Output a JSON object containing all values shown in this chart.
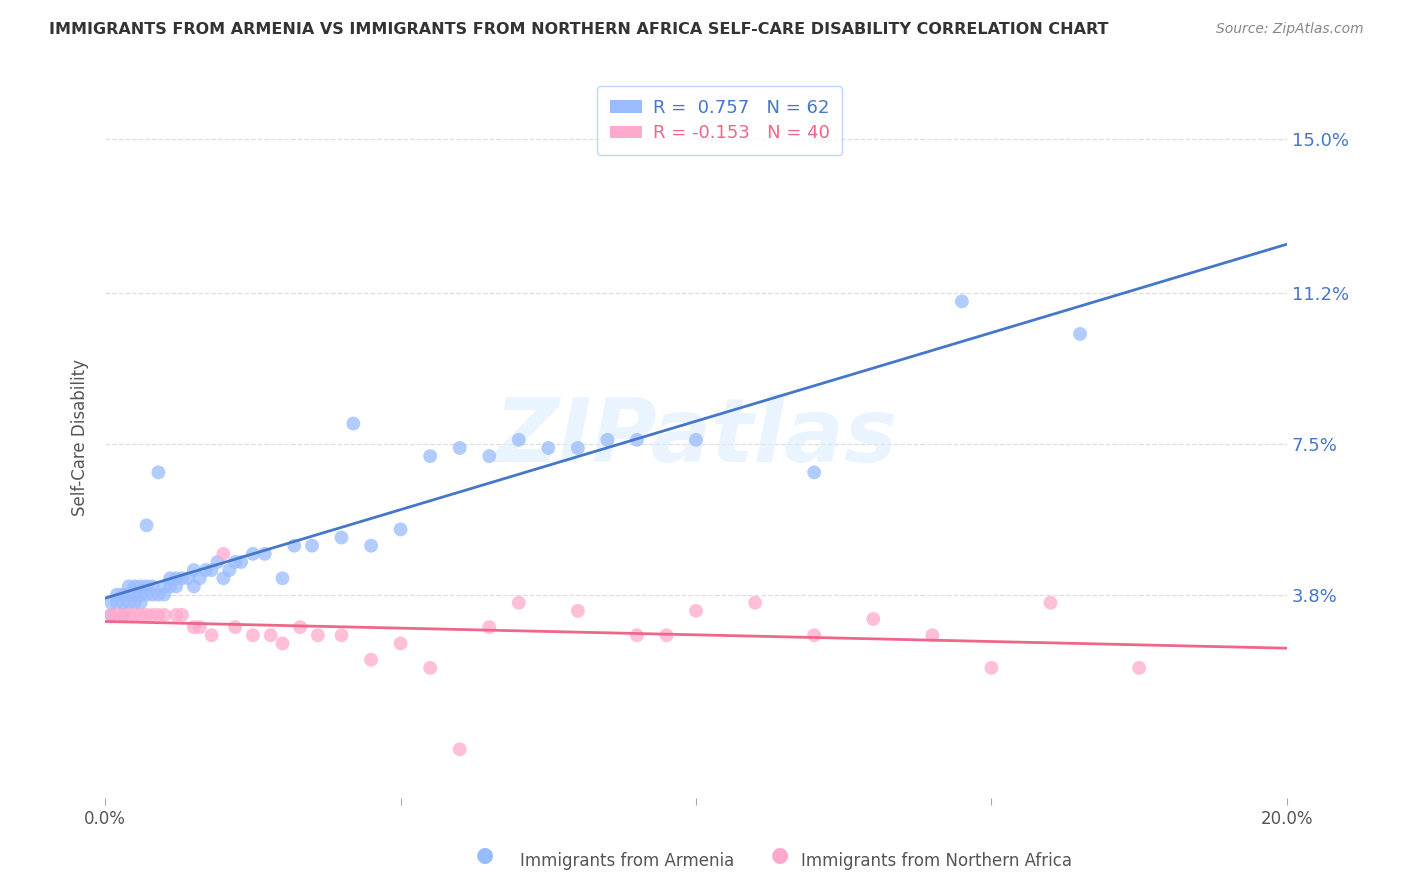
{
  "title": "IMMIGRANTS FROM ARMENIA VS IMMIGRANTS FROM NORTHERN AFRICA SELF-CARE DISABILITY CORRELATION CHART",
  "source": "Source: ZipAtlas.com",
  "ylabel": "Self-Care Disability",
  "ytick_labels": [
    "15.0%",
    "11.2%",
    "7.5%",
    "3.8%"
  ],
  "ytick_values": [
    0.15,
    0.112,
    0.075,
    0.038
  ],
  "xlim": [
    0.0,
    0.2
  ],
  "ylim": [
    -0.012,
    0.165
  ],
  "armenia_color": "#99BBFF",
  "northern_africa_color": "#FFAACC",
  "armenia_line_color": "#4477CC",
  "northern_africa_line_color": "#EE6688",
  "legend_R_armenia": "R =  0.757   N = 62",
  "legend_R_africa": "R = -0.153   N = 40",
  "armenia_x": [
    0.001,
    0.001,
    0.002,
    0.002,
    0.003,
    0.003,
    0.003,
    0.004,
    0.004,
    0.004,
    0.005,
    0.005,
    0.005,
    0.006,
    0.006,
    0.006,
    0.007,
    0.007,
    0.007,
    0.008,
    0.008,
    0.009,
    0.009,
    0.01,
    0.01,
    0.011,
    0.011,
    0.012,
    0.012,
    0.013,
    0.014,
    0.015,
    0.015,
    0.016,
    0.017,
    0.018,
    0.019,
    0.02,
    0.021,
    0.022,
    0.023,
    0.025,
    0.027,
    0.03,
    0.032,
    0.035,
    0.04,
    0.042,
    0.045,
    0.05,
    0.055,
    0.06,
    0.065,
    0.07,
    0.075,
    0.08,
    0.085,
    0.09,
    0.1,
    0.12,
    0.145,
    0.165
  ],
  "armenia_y": [
    0.033,
    0.036,
    0.036,
    0.038,
    0.033,
    0.036,
    0.038,
    0.036,
    0.038,
    0.04,
    0.036,
    0.038,
    0.04,
    0.036,
    0.038,
    0.04,
    0.038,
    0.04,
    0.055,
    0.038,
    0.04,
    0.038,
    0.068,
    0.038,
    0.04,
    0.042,
    0.04,
    0.04,
    0.042,
    0.042,
    0.042,
    0.04,
    0.044,
    0.042,
    0.044,
    0.044,
    0.046,
    0.042,
    0.044,
    0.046,
    0.046,
    0.048,
    0.048,
    0.042,
    0.05,
    0.05,
    0.052,
    0.08,
    0.05,
    0.054,
    0.072,
    0.074,
    0.072,
    0.076,
    0.074,
    0.074,
    0.076,
    0.076,
    0.076,
    0.068,
    0.11,
    0.102
  ],
  "northern_africa_x": [
    0.001,
    0.002,
    0.003,
    0.004,
    0.005,
    0.006,
    0.007,
    0.008,
    0.009,
    0.01,
    0.012,
    0.013,
    0.015,
    0.016,
    0.018,
    0.02,
    0.022,
    0.025,
    0.028,
    0.03,
    0.033,
    0.036,
    0.04,
    0.045,
    0.05,
    0.055,
    0.06,
    0.065,
    0.07,
    0.08,
    0.09,
    0.095,
    0.1,
    0.11,
    0.12,
    0.13,
    0.14,
    0.15,
    0.16,
    0.175
  ],
  "northern_africa_y": [
    0.033,
    0.033,
    0.033,
    0.033,
    0.033,
    0.033,
    0.033,
    0.033,
    0.033,
    0.033,
    0.033,
    0.033,
    0.03,
    0.03,
    0.028,
    0.048,
    0.03,
    0.028,
    0.028,
    0.026,
    0.03,
    0.028,
    0.028,
    0.022,
    0.026,
    0.02,
    0.0,
    0.03,
    0.036,
    0.034,
    0.028,
    0.028,
    0.034,
    0.036,
    0.028,
    0.032,
    0.028,
    0.02,
    0.036,
    0.02
  ],
  "watermark": "ZIPatlas",
  "background_color": "#FFFFFF",
  "grid_color": "#DDDDDD"
}
